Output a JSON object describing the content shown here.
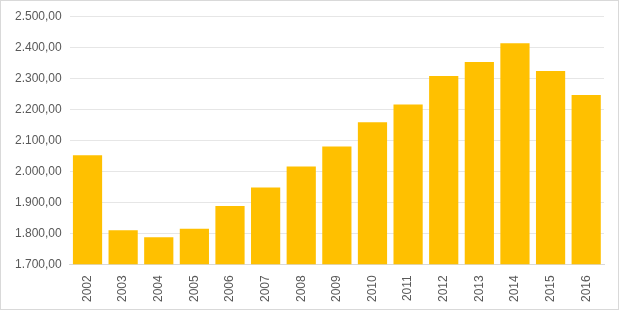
{
  "chart_data": {
    "type": "bar",
    "categories": [
      "2002",
      "2003",
      "2004",
      "2005",
      "2006",
      "2007",
      "2008",
      "2009",
      "2010",
      "2011",
      "2012",
      "2013",
      "2014",
      "2015",
      "2016"
    ],
    "values": [
      2052,
      1810,
      1787,
      1815,
      1888,
      1948,
      2015,
      2080,
      2158,
      2215,
      2307,
      2352,
      2413,
      2323,
      2246
    ],
    "color": "#ffc000",
    "ylim": [
      1700,
      2500
    ],
    "yticks": [
      {
        "value": 1700,
        "label": "1.700,00"
      },
      {
        "value": 1800,
        "label": "1.800,00"
      },
      {
        "value": 1900,
        "label": "1.900,00"
      },
      {
        "value": 2000,
        "label": "2.000,00"
      },
      {
        "value": 2100,
        "label": "2.100,00"
      },
      {
        "value": 2200,
        "label": "2.200,00"
      },
      {
        "value": 2300,
        "label": "2.300,00"
      },
      {
        "value": 2400,
        "label": "2.400,00"
      },
      {
        "value": 2500,
        "label": "2.500,00"
      }
    ],
    "grid": true
  }
}
